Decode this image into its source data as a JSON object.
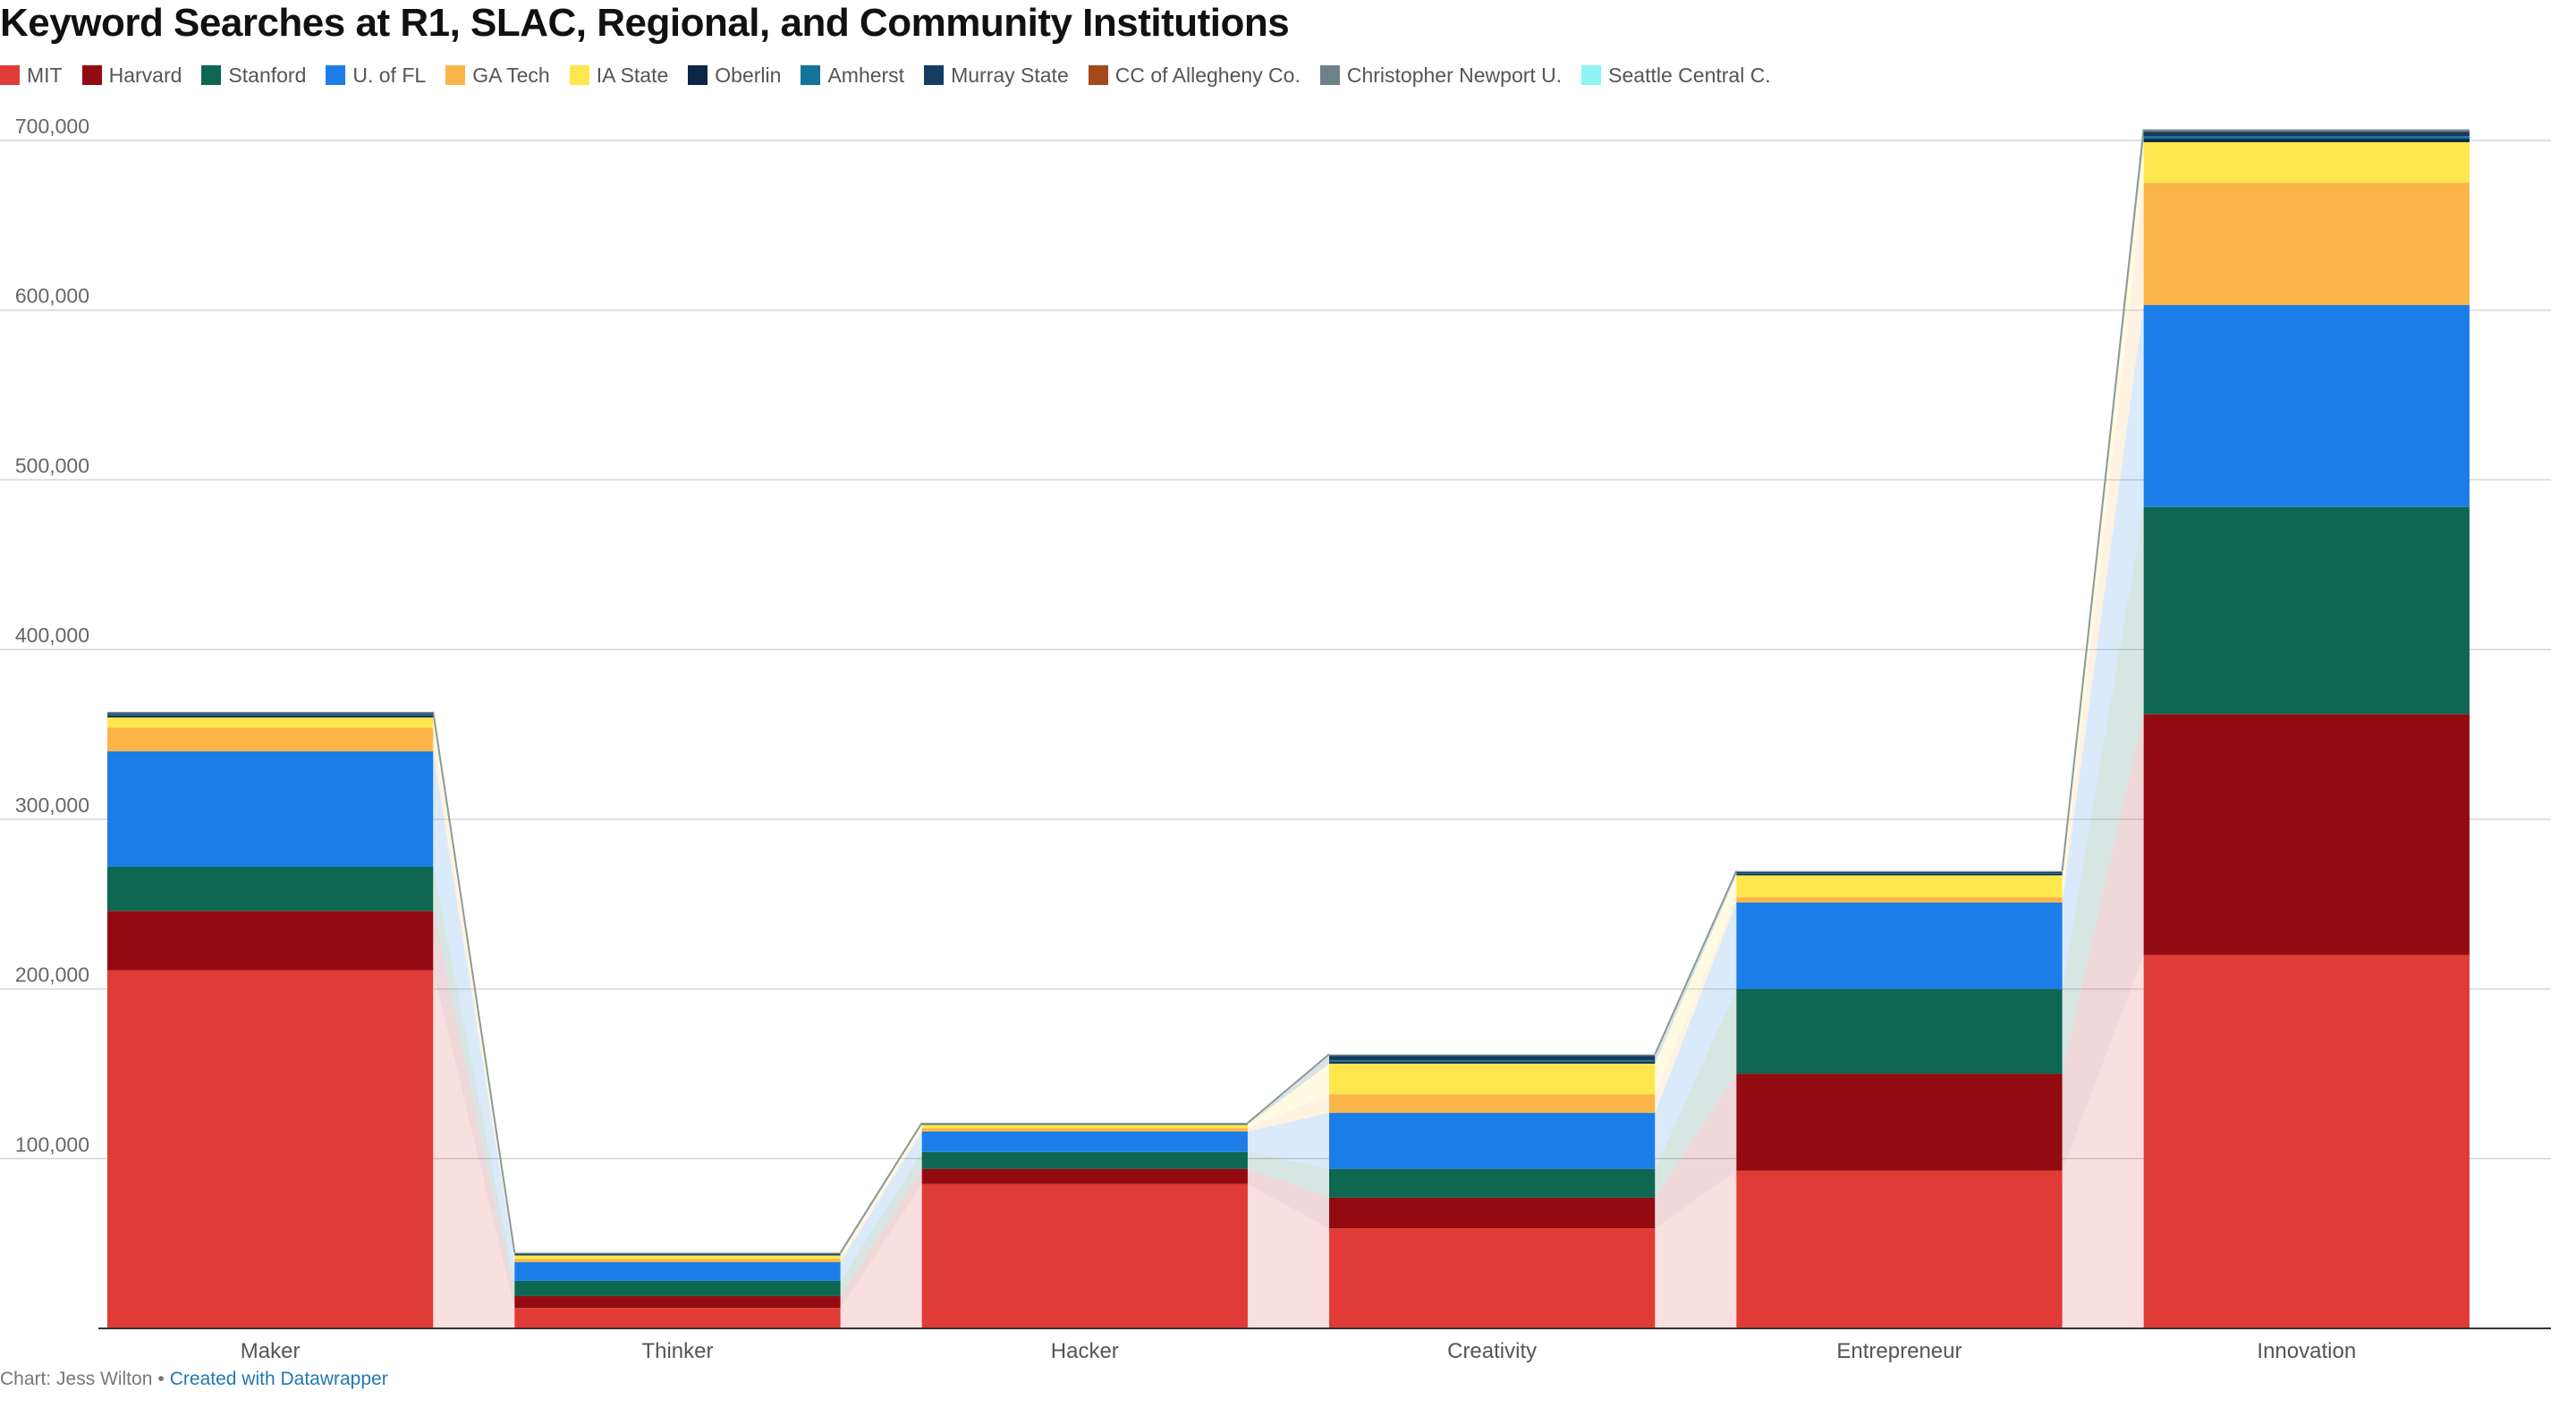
{
  "title": "Keyword Searches at R1, SLAC, Regional, and Community Institutions",
  "footer": {
    "credit": "Chart: Jess Wilton",
    "separator": "•",
    "link_text": "Created with Datawrapper"
  },
  "chart_data": {
    "type": "bar",
    "stacked": true,
    "title": "Keyword Searches at R1, SLAC, Regional, and Community Institutions",
    "xlabel": "",
    "ylabel": "",
    "ylim": [
      0,
      700000
    ],
    "yticks": [
      100000,
      200000,
      300000,
      400000,
      500000,
      600000,
      700000
    ],
    "ytick_labels": [
      "100,000",
      "200,000",
      "300,000",
      "400,000",
      "500,000",
      "600,000",
      "700,000"
    ],
    "grid": true,
    "legend_position": "top-left",
    "categories": [
      "Maker",
      "Thinker",
      "Hacker",
      "Creativity",
      "Entrepreneur",
      "Innovation"
    ],
    "series": [
      {
        "name": "MIT",
        "color": "#e03b36",
        "values": [
          211000,
          12000,
          85000,
          59000,
          93000,
          220000
        ]
      },
      {
        "name": "Harvard",
        "color": "#930b10",
        "values": [
          35000,
          7000,
          9000,
          18000,
          57000,
          142000
        ]
      },
      {
        "name": "Stanford",
        "color": "#0f6651",
        "values": [
          26000,
          9000,
          10000,
          17000,
          50000,
          122000
        ]
      },
      {
        "name": "U. of FL",
        "color": "#1b7ee8",
        "values": [
          68000,
          11000,
          12000,
          33000,
          51000,
          119000
        ]
      },
      {
        "name": "GA Tech",
        "color": "#fbb448",
        "values": [
          14000,
          2000,
          2000,
          11000,
          3000,
          72000
        ]
      },
      {
        "name": "IA State",
        "color": "#fde74c",
        "values": [
          6000,
          2000,
          2000,
          18000,
          13000,
          24000
        ]
      },
      {
        "name": "Oberlin",
        "color": "#0b2545",
        "values": [
          1000,
          500,
          300,
          1000,
          800,
          2000
        ]
      },
      {
        "name": "Amherst",
        "color": "#14739a",
        "values": [
          800,
          400,
          300,
          1000,
          500,
          1500
        ]
      },
      {
        "name": "Murray State",
        "color": "#153d63",
        "values": [
          700,
          300,
          200,
          2500,
          600,
          2500
        ]
      },
      {
        "name": "CC of Allegheny Co.",
        "color": "#a34a1b",
        "values": [
          150,
          50,
          50,
          200,
          100,
          300
        ]
      },
      {
        "name": "Christopher Newport U.",
        "color": "#6d8188",
        "values": [
          600,
          300,
          200,
          700,
          500,
          1200
        ]
      },
      {
        "name": "Seattle Central C.",
        "color": "#8ef4f4",
        "values": [
          100,
          50,
          50,
          150,
          100,
          200
        ]
      }
    ]
  }
}
